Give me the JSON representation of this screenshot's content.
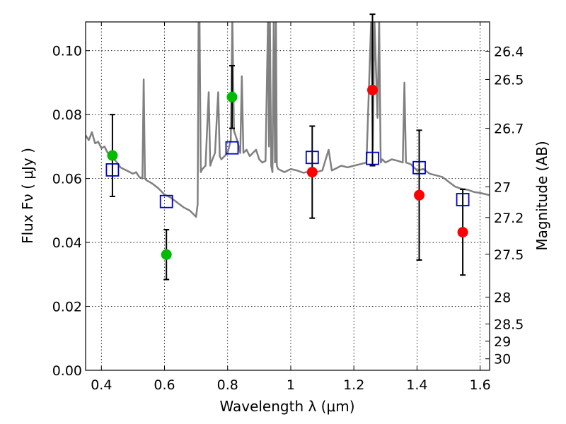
{
  "chart_data": {
    "type": "scatter",
    "xlabel": "Wavelength  λ (μm)",
    "ylabel": "Flux  Fν  ( μJy )",
    "ylabel_right": "Magnitude (AB)",
    "xlim": [
      0.35,
      1.63
    ],
    "ylim": [
      0.0,
      0.109
    ],
    "grid": true,
    "x_ticks": [
      0.4,
      0.6,
      0.8,
      1.0,
      1.2,
      1.4,
      1.6
    ],
    "x_tick_labels": [
      "0.4",
      "0.6",
      "0.8",
      "1",
      "1.2",
      "1.4",
      "1.6"
    ],
    "y_ticks": [
      0.0,
      0.02,
      0.04,
      0.06,
      0.08,
      0.1
    ],
    "y_tick_labels": [
      "0.00",
      "0.02",
      "0.04",
      "0.06",
      "0.08",
      "0.10"
    ],
    "right_ticks": [
      {
        "label": "26.4",
        "flux": 0.0998
      },
      {
        "label": "26.5",
        "flux": 0.091
      },
      {
        "label": "26.7",
        "flux": 0.0757
      },
      {
        "label": "27",
        "flux": 0.0574
      },
      {
        "label": "27.2",
        "flux": 0.0478
      },
      {
        "label": "27.5",
        "flux": 0.0363
      },
      {
        "label": "28",
        "flux": 0.0229
      },
      {
        "label": "28.5",
        "flux": 0.0145
      },
      {
        "label": "29",
        "flux": 0.0091
      },
      {
        "label": "30",
        "flux": 0.0036
      }
    ],
    "colors": {
      "green": "#00bb00",
      "red": "#ff0000",
      "model": "#0000cc",
      "spectrum": "#808080"
    },
    "series": [
      {
        "kind": "observed-optical",
        "color": "#00bb00",
        "points": [
          {
            "x": 0.435,
            "y": 0.0672,
            "err": 0.0128
          },
          {
            "x": 0.606,
            "y": 0.0362,
            "err": 0.0078
          },
          {
            "x": 0.814,
            "y": 0.0855,
            "err": 0.0098
          }
        ]
      },
      {
        "kind": "observed-nir",
        "color": "#ff0000",
        "points": [
          {
            "x": 1.068,
            "y": 0.062,
            "err": 0.0144
          },
          {
            "x": 1.259,
            "y": 0.0877,
            "err": 0.0237
          },
          {
            "x": 1.407,
            "y": 0.0548,
            "err": 0.0203
          },
          {
            "x": 1.545,
            "y": 0.0432,
            "err": 0.0134
          }
        ]
      },
      {
        "kind": "model-photometry",
        "color": "#0000cc",
        "points": [
          {
            "x": 0.435,
            "y": 0.0627
          },
          {
            "x": 0.606,
            "y": 0.0528
          },
          {
            "x": 0.814,
            "y": 0.0696
          },
          {
            "x": 1.068,
            "y": 0.0666
          },
          {
            "x": 1.259,
            "y": 0.0663
          },
          {
            "x": 1.407,
            "y": 0.0634
          },
          {
            "x": 1.545,
            "y": 0.0534
          }
        ]
      }
    ],
    "spectrum": {
      "color": "#808080",
      "x": [
        0.35,
        0.36,
        0.37,
        0.38,
        0.39,
        0.4,
        0.41,
        0.42,
        0.43,
        0.44,
        0.45,
        0.46,
        0.47,
        0.48,
        0.49,
        0.5,
        0.51,
        0.52,
        0.53,
        0.534,
        0.538,
        0.542,
        0.56,
        0.58,
        0.6,
        0.62,
        0.64,
        0.66,
        0.68,
        0.69,
        0.7,
        0.705,
        0.708,
        0.711,
        0.715,
        0.72,
        0.73,
        0.74,
        0.745,
        0.75,
        0.76,
        0.77,
        0.775,
        0.78,
        0.79,
        0.8,
        0.81,
        0.815,
        0.82,
        0.83,
        0.84,
        0.845,
        0.85,
        0.86,
        0.87,
        0.88,
        0.89,
        0.9,
        0.91,
        0.92,
        0.928,
        0.931,
        0.934,
        0.938,
        0.942,
        0.946,
        0.95,
        0.953,
        0.956,
        0.96,
        0.98,
        1.0,
        1.02,
        1.04,
        1.06,
        1.08,
        1.1,
        1.12,
        1.13,
        1.14,
        1.16,
        1.18,
        1.2,
        1.22,
        1.24,
        1.255,
        1.26,
        1.265,
        1.275,
        1.28,
        1.285,
        1.29,
        1.3,
        1.32,
        1.34,
        1.355,
        1.36,
        1.365,
        1.38,
        1.4,
        1.42,
        1.44,
        1.46,
        1.48,
        1.5,
        1.52,
        1.54,
        1.56,
        1.58,
        1.6,
        1.63
      ],
      "y": [
        0.0735,
        0.072,
        0.0745,
        0.071,
        0.0715,
        0.0695,
        0.07,
        0.068,
        0.0675,
        0.066,
        0.065,
        0.0635,
        0.063,
        0.0625,
        0.062,
        0.0615,
        0.062,
        0.0605,
        0.06,
        0.091,
        0.06,
        0.0595,
        0.0585,
        0.057,
        0.055,
        0.054,
        0.0525,
        0.051,
        0.05,
        0.049,
        0.048,
        0.052,
        0.11,
        0.11,
        0.062,
        0.063,
        0.064,
        0.087,
        0.064,
        0.0655,
        0.068,
        0.087,
        0.067,
        0.066,
        0.067,
        0.068,
        0.072,
        0.11,
        0.075,
        0.072,
        0.068,
        0.092,
        0.068,
        0.069,
        0.067,
        0.068,
        0.069,
        0.066,
        0.065,
        0.0655,
        0.11,
        0.07,
        0.11,
        0.064,
        0.062,
        0.11,
        0.065,
        0.11,
        0.064,
        0.063,
        0.062,
        0.063,
        0.0625,
        0.0618,
        0.0622,
        0.062,
        0.0625,
        0.069,
        0.0625,
        0.063,
        0.064,
        0.0635,
        0.064,
        0.0645,
        0.065,
        0.11,
        0.069,
        0.11,
        0.079,
        0.11,
        0.065,
        0.066,
        0.065,
        0.066,
        0.0655,
        0.065,
        0.09,
        0.065,
        0.0645,
        0.0625,
        0.063,
        0.0615,
        0.061,
        0.0605,
        0.059,
        0.0575,
        0.0568,
        0.0565,
        0.0558,
        0.0555,
        0.0548
      ]
    }
  }
}
